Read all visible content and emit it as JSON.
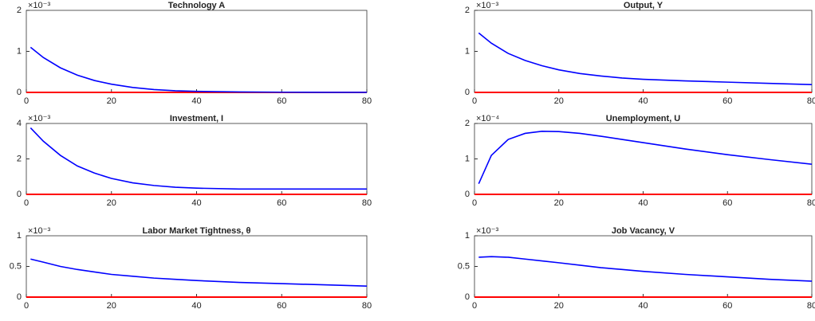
{
  "chart_data": [
    {
      "type": "line",
      "title": "Technology A",
      "exponent_label": "×10⁻³",
      "x": [
        1,
        4,
        8,
        12,
        16,
        20,
        25,
        30,
        35,
        40,
        50,
        60,
        70,
        80
      ],
      "series": [
        {
          "color": "#0000ff",
          "values": [
            1.1,
            0.85,
            0.6,
            0.42,
            0.29,
            0.2,
            0.12,
            0.07,
            0.04,
            0.025,
            0.01,
            0.005,
            0.002,
            0.001
          ]
        }
      ],
      "reference_line": {
        "value": 0,
        "color": "#ff0000"
      },
      "xlim": [
        0,
        80
      ],
      "ylim": [
        0,
        2
      ],
      "xticks": [
        0,
        20,
        40,
        60,
        80
      ],
      "yticks": [
        0,
        1,
        2
      ]
    },
    {
      "type": "line",
      "title": "Output, Y",
      "exponent_label": "×10⁻³",
      "x": [
        1,
        4,
        8,
        12,
        16,
        20,
        25,
        30,
        35,
        40,
        50,
        60,
        70,
        80
      ],
      "series": [
        {
          "color": "#0000ff",
          "values": [
            1.45,
            1.2,
            0.95,
            0.78,
            0.65,
            0.55,
            0.46,
            0.4,
            0.35,
            0.32,
            0.28,
            0.25,
            0.22,
            0.19
          ]
        }
      ],
      "reference_line": {
        "value": 0,
        "color": "#ff0000"
      },
      "xlim": [
        0,
        80
      ],
      "ylim": [
        0,
        2
      ],
      "xticks": [
        0,
        20,
        40,
        60,
        80
      ],
      "yticks": [
        0,
        1,
        2
      ]
    },
    {
      "type": "line",
      "title": "Investment, I",
      "exponent_label": "×10⁻³",
      "x": [
        1,
        4,
        8,
        12,
        16,
        20,
        25,
        30,
        35,
        40,
        50,
        60,
        70,
        80
      ],
      "series": [
        {
          "color": "#0000ff",
          "values": [
            3.75,
            3.0,
            2.2,
            1.6,
            1.2,
            0.9,
            0.65,
            0.5,
            0.4,
            0.35,
            0.3,
            0.3,
            0.3,
            0.3
          ]
        }
      ],
      "reference_line": {
        "value": 0,
        "color": "#ff0000"
      },
      "xlim": [
        0,
        80
      ],
      "ylim": [
        0,
        4
      ],
      "xticks": [
        0,
        20,
        40,
        60,
        80
      ],
      "yticks": [
        0,
        2,
        4
      ]
    },
    {
      "type": "line",
      "title": "Unemployment, U",
      "exponent_label": "×10⁻⁴",
      "x": [
        1,
        4,
        8,
        12,
        16,
        20,
        25,
        30,
        35,
        40,
        50,
        60,
        70,
        80
      ],
      "series": [
        {
          "color": "#0000ff",
          "values": [
            0.3,
            1.1,
            1.55,
            1.72,
            1.78,
            1.77,
            1.72,
            1.64,
            1.55,
            1.46,
            1.28,
            1.12,
            0.98,
            0.85
          ]
        }
      ],
      "reference_line": {
        "value": 0,
        "color": "#ff0000"
      },
      "xlim": [
        0,
        80
      ],
      "ylim": [
        0,
        2
      ],
      "xticks": [
        0,
        20,
        40,
        60,
        80
      ],
      "yticks": [
        0,
        1,
        2
      ]
    },
    {
      "type": "line",
      "title": "Labor Market Tightness, θ",
      "exponent_label": "×10⁻³",
      "x": [
        1,
        4,
        8,
        12,
        16,
        20,
        25,
        30,
        35,
        40,
        50,
        60,
        70,
        80
      ],
      "series": [
        {
          "color": "#0000ff",
          "values": [
            0.62,
            0.57,
            0.5,
            0.45,
            0.41,
            0.37,
            0.34,
            0.31,
            0.29,
            0.27,
            0.24,
            0.22,
            0.2,
            0.18
          ]
        }
      ],
      "reference_line": {
        "value": 0,
        "color": "#ff0000"
      },
      "xlim": [
        0,
        80
      ],
      "ylim": [
        0,
        1
      ],
      "xticks": [
        0,
        20,
        40,
        60,
        80
      ],
      "yticks": [
        0,
        0.5,
        1
      ]
    },
    {
      "type": "line",
      "title": "Job Vacancy, V",
      "exponent_label": "×10⁻³",
      "x": [
        1,
        4,
        8,
        12,
        16,
        20,
        25,
        30,
        35,
        40,
        50,
        60,
        70,
        80
      ],
      "series": [
        {
          "color": "#0000ff",
          "values": [
            0.65,
            0.66,
            0.65,
            0.62,
            0.59,
            0.56,
            0.52,
            0.48,
            0.45,
            0.42,
            0.37,
            0.33,
            0.29,
            0.26
          ]
        }
      ],
      "reference_line": {
        "value": 0,
        "color": "#ff0000"
      },
      "xlim": [
        0,
        80
      ],
      "ylim": [
        0,
        1
      ],
      "xticks": [
        0,
        20,
        40,
        60,
        80
      ],
      "yticks": [
        0,
        0.5,
        1
      ]
    }
  ]
}
